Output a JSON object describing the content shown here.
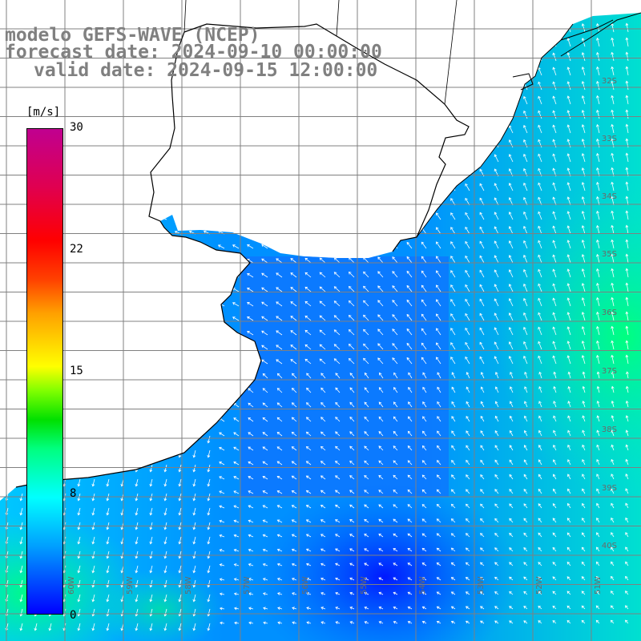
{
  "header": {
    "line1": "modelo GEFS-WAVE (NCEP)",
    "line2": "forecast date: 2024-09-10 00:00:00",
    "line3": "valid date: 2024-09-15 12:00:00"
  },
  "colorbar": {
    "unit": "[m/s]",
    "ticks": [
      "30",
      "22",
      "15",
      "8",
      "0"
    ],
    "tick_values": [
      30,
      22,
      15,
      8,
      0
    ],
    "range": [
      0,
      30
    ],
    "colors": [
      "#0000ff",
      "#00a0ff",
      "#00ffff",
      "#00ff80",
      "#00e000",
      "#80ff00",
      "#ffff00",
      "#ffa000",
      "#ff4000",
      "#ff0000",
      "#e00050",
      "#c00090"
    ]
  },
  "map": {
    "latitude_labels": [
      "32S",
      "33S",
      "34S",
      "35S",
      "36S",
      "37S",
      "38S",
      "39S",
      "40S"
    ],
    "longitude_labels": [
      "60W",
      "59W",
      "58W",
      "57W",
      "56W",
      "55W",
      "54W",
      "53W",
      "52W",
      "51W"
    ],
    "land_color": "#ffffff",
    "grid_color": "#808080",
    "coast_color": "#000000",
    "vector_color": "#ffffff"
  }
}
